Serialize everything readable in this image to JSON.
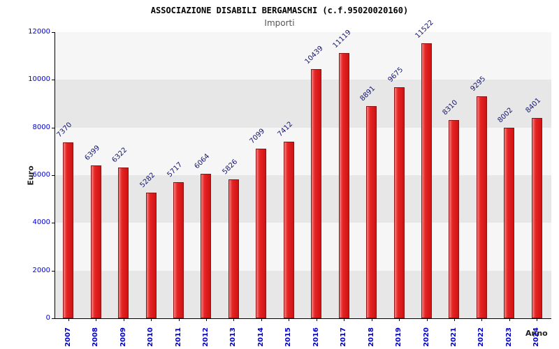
{
  "chart_data": {
    "type": "bar",
    "title": "ASSOCIAZIONE DISABILI BERGAMASCHI (c.f.95020020160)",
    "subtitle": "Importi",
    "xlabel": "Anno",
    "ylabel": "Euro",
    "categories": [
      "2007",
      "2008",
      "2009",
      "2010",
      "2011",
      "2012",
      "2013",
      "2014",
      "2015",
      "2016",
      "2017",
      "2018",
      "2019",
      "2020",
      "2021",
      "2022",
      "2023",
      "2024"
    ],
    "values": [
      7370,
      6399,
      6322,
      5282,
      5717,
      6064,
      5826,
      7099,
      7412,
      10439,
      11119,
      8891,
      9675,
      11522,
      8310,
      9295,
      8002,
      8401
    ],
    "ylim": [
      0,
      12000
    ],
    "yticks": [
      0,
      2000,
      4000,
      6000,
      8000,
      10000,
      12000
    ],
    "grid": "alternating-horizontal-bands",
    "legend": "none",
    "colors": {
      "bar_fill": "#e62424",
      "bar_border": "#8c1414",
      "value_label": "#16166e",
      "tick_label": "#0000cc",
      "band_dark": "#e7e7e7",
      "band_light": "#f6f6f6",
      "title": "#000000",
      "subtitle": "#555555"
    }
  }
}
